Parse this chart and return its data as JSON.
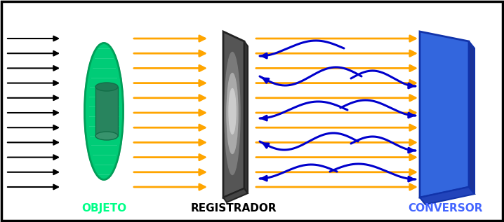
{
  "fig_width": 7.18,
  "fig_height": 3.17,
  "dpi": 100,
  "bg_color": "#ffffff",
  "border_color": "#000000",
  "arrow_black_color": "#000000",
  "arrow_orange_color": "#FFA500",
  "arrow_blue_color": "#0000CC",
  "green_color": "#00CC77",
  "green_dark": "#009955",
  "gray_dark": "#444444",
  "gray_mid": "#888888",
  "gray_light": "#BBBBBB",
  "blue_panel": "#2255CC",
  "blue_dark": "#1133AA",
  "label_objeto": "OBJETO",
  "label_registrador": "REGISTRADOR",
  "label_conversor": "CONVERSOR",
  "label_objeto_color": "#00FF88",
  "label_registrador_color": "#000000",
  "label_conversor_color": "#4466FF"
}
